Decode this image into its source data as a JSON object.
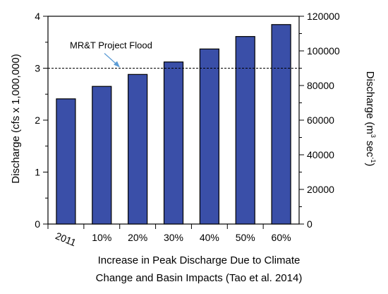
{
  "chart_data": {
    "type": "bar",
    "categories": [
      "2011",
      "10%",
      "20%",
      "30%",
      "40%",
      "50%",
      "60%"
    ],
    "values": [
      2.41,
      2.65,
      2.88,
      3.12,
      3.37,
      3.61,
      3.84
    ],
    "bar_color": "#3a4fa8",
    "ylim": [
      0,
      4
    ],
    "y_ticks": [
      "0",
      "1",
      "2",
      "3",
      "4"
    ],
    "y2lim": [
      0,
      120000
    ],
    "y2_ticks": [
      "0",
      "20000",
      "40000",
      "60000",
      "80000",
      "100000",
      "120000"
    ],
    "ylabel": "Discharge (cfs x 1,000,000)",
    "y2label_main": "Discharge  (m",
    "y2label_sup1": "3",
    "y2label_mid": " sec",
    "y2label_sup2": "-1",
    "y2label_end": ")",
    "xlabel_line1": "Increase in Peak Discharge Due to Climate",
    "xlabel_line2": "Change and Basin Impacts (Tao et al. 2014)",
    "reference_line": {
      "value": 3.0,
      "label": "MR&T Project Flood"
    },
    "grid": false,
    "legend": "none"
  }
}
